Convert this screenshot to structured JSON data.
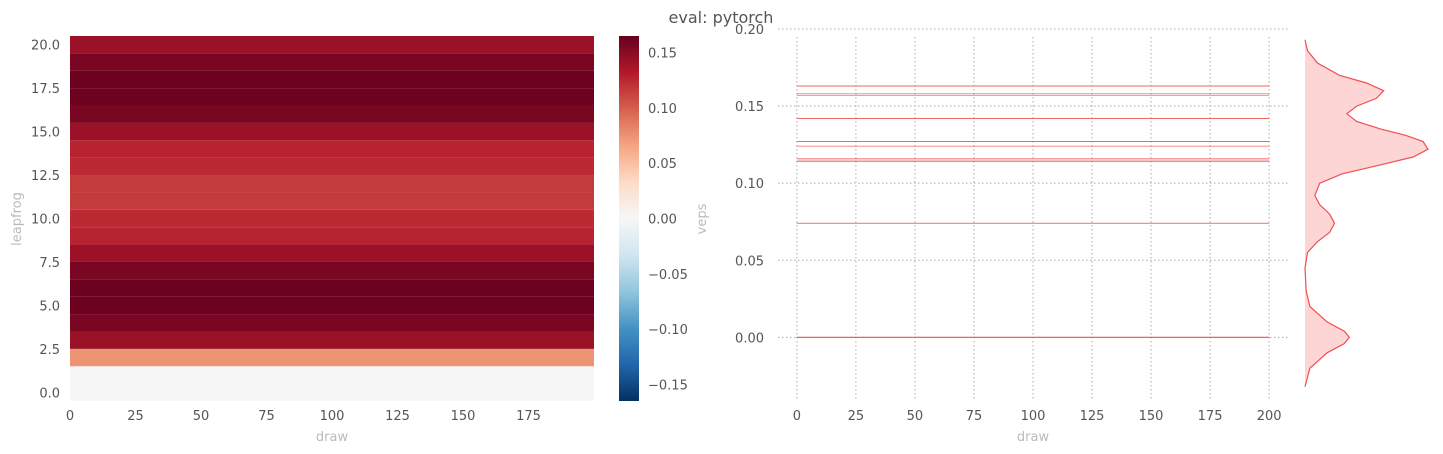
{
  "figure": {
    "suptitle": "eval: pytorch"
  },
  "chart_data": [
    {
      "type": "heatmap",
      "xlabel": "draw",
      "ylabel": "leapfrog",
      "n_draws": 200,
      "xlim": [
        0,
        200
      ],
      "ylim": [
        -0.5,
        20.5
      ],
      "xticks": [
        0,
        25,
        50,
        75,
        100,
        125,
        150,
        175
      ],
      "xtick_labels": [
        "0",
        "25",
        "50",
        "75",
        "100",
        "125",
        "150",
        "175"
      ],
      "yticks": [
        0,
        2.5,
        5,
        7.5,
        10,
        12.5,
        15,
        17.5,
        20
      ],
      "ytick_labels": [
        "0.0",
        "2.5",
        "5.0",
        "7.5",
        "10.0",
        "12.5",
        "15.0",
        "17.5",
        "20.0"
      ],
      "row_values": [
        0.0,
        0.0,
        0.074,
        0.142,
        0.157,
        0.163,
        0.163,
        0.157,
        0.142,
        0.127,
        0.124,
        0.116,
        0.116,
        0.124,
        0.127,
        0.142,
        0.157,
        0.163,
        0.163,
        0.157,
        0.142,
        0.074,
        0.0
      ],
      "cmap": "RdBu_r",
      "colorbar": {
        "label": "veps",
        "vmin": -0.165,
        "vmax": 0.165,
        "ticks": [
          -0.15,
          -0.1,
          -0.05,
          0.0,
          0.05,
          0.1,
          0.15
        ],
        "tick_labels": [
          "−0.15",
          "−0.10",
          "−0.05",
          "0.00",
          "0.05",
          "0.10",
          "0.15"
        ]
      }
    },
    {
      "type": "line",
      "xlabel": "draw",
      "xlim": [
        -8,
        208
      ],
      "ylim": [
        -0.04,
        0.2
      ],
      "xticks": [
        0,
        25,
        50,
        75,
        100,
        125,
        150,
        175,
        200
      ],
      "xtick_labels": [
        "0",
        "25",
        "50",
        "75",
        "100",
        "125",
        "150",
        "175",
        "200"
      ],
      "yticks": [
        0.0,
        0.05,
        0.1,
        0.15,
        0.2
      ],
      "ytick_labels": [
        "0.00",
        "0.05",
        "0.10",
        "0.15",
        "0.20"
      ],
      "grid": true,
      "line_color": "#f05050",
      "x_range": [
        0,
        200
      ],
      "series_values": [
        0.0,
        0.0,
        0.0,
        0.074,
        0.074,
        0.114,
        0.115,
        0.116,
        0.124,
        0.127,
        0.127,
        0.142,
        0.142,
        0.157,
        0.158,
        0.163,
        0.163
      ]
    },
    {
      "type": "area",
      "orientation": "vertical",
      "description_of": "marginal density of veps",
      "y": [
        -0.032,
        -0.02,
        -0.01,
        -0.004,
        0.0,
        0.004,
        0.01,
        0.02,
        0.03,
        0.045,
        0.055,
        0.062,
        0.068,
        0.074,
        0.08,
        0.086,
        0.092,
        0.1,
        0.106,
        0.112,
        0.117,
        0.122,
        0.127,
        0.131,
        0.135,
        0.14,
        0.145,
        0.15,
        0.155,
        0.16,
        0.165,
        0.17,
        0.178,
        0.186,
        0.193
      ],
      "density": [
        0.0,
        0.04,
        0.18,
        0.32,
        0.36,
        0.32,
        0.18,
        0.04,
        0.01,
        0.0,
        0.02,
        0.1,
        0.2,
        0.24,
        0.2,
        0.12,
        0.08,
        0.12,
        0.3,
        0.62,
        0.88,
        1.0,
        0.96,
        0.82,
        0.62,
        0.42,
        0.34,
        0.42,
        0.58,
        0.64,
        0.5,
        0.28,
        0.1,
        0.02,
        0.0
      ],
      "fill_color": "#fdd5d5",
      "line_color": "#f05050"
    }
  ]
}
